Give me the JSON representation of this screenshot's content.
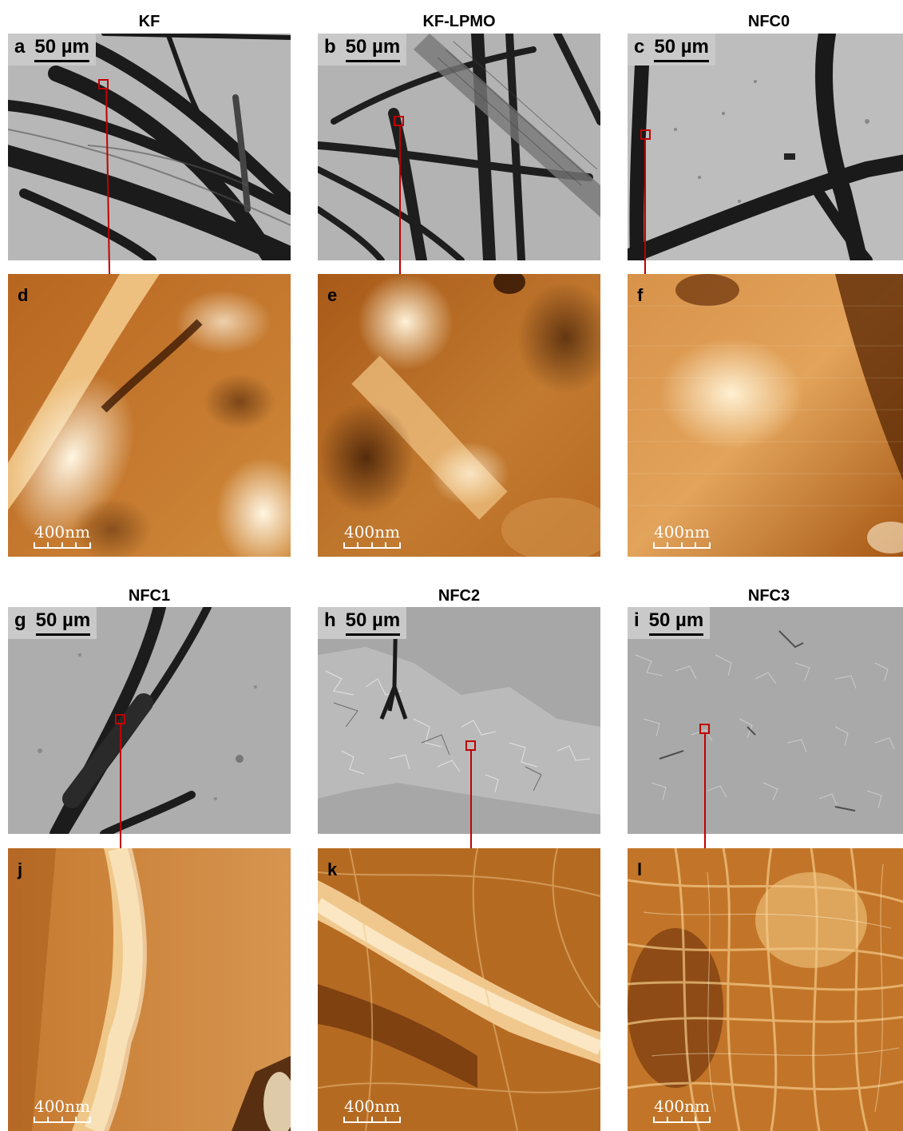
{
  "columns_top": [
    {
      "title": "KF",
      "micro_label": "a",
      "afm_label": "d"
    },
    {
      "title": "KF-LPMO",
      "micro_label": "b",
      "afm_label": "e"
    },
    {
      "title": "NFC0",
      "micro_label": "c",
      "afm_label": "f"
    }
  ],
  "columns_bottom": [
    {
      "title": "NFC1",
      "micro_label": "g",
      "afm_label": "j"
    },
    {
      "title": "NFC2",
      "micro_label": "h",
      "afm_label": "k"
    },
    {
      "title": "NFC3",
      "micro_label": "i",
      "afm_label": "l"
    }
  ],
  "micro_scale_label": "50 µm",
  "afm_scale_label": "400nm",
  "colors": {
    "connector": "#c00000",
    "micro_bg": "#b9b9b9",
    "afm_dark": "#5a2a05",
    "afm_light": "#fff2d8"
  }
}
